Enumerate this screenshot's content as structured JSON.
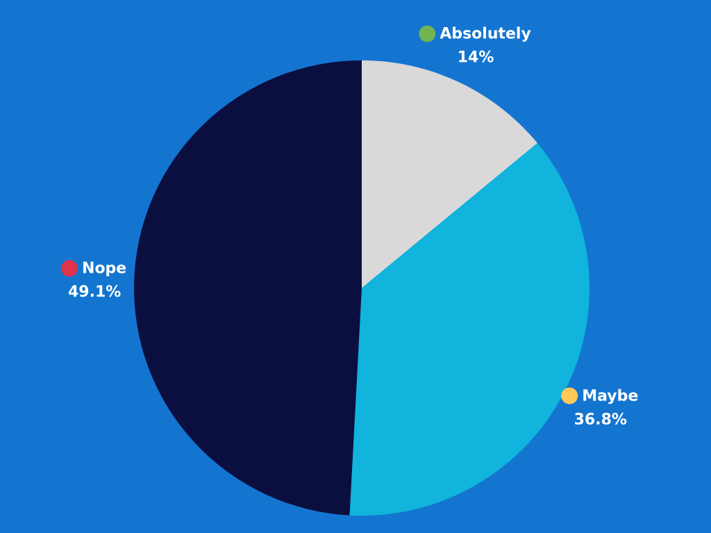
{
  "chart_data": {
    "type": "pie",
    "categories": [
      "Absolutely",
      "Maybe",
      "Nope"
    ],
    "values": [
      14,
      36.8,
      49.1
    ],
    "value_labels": [
      "14%",
      "36.8%",
      "49.1%"
    ],
    "colors": [
      "#d9d9d9",
      "#10b4dc",
      "#0a0f40"
    ],
    "marker_colors": [
      "#72b352",
      "#ffc857",
      "#e0344c"
    ]
  }
}
